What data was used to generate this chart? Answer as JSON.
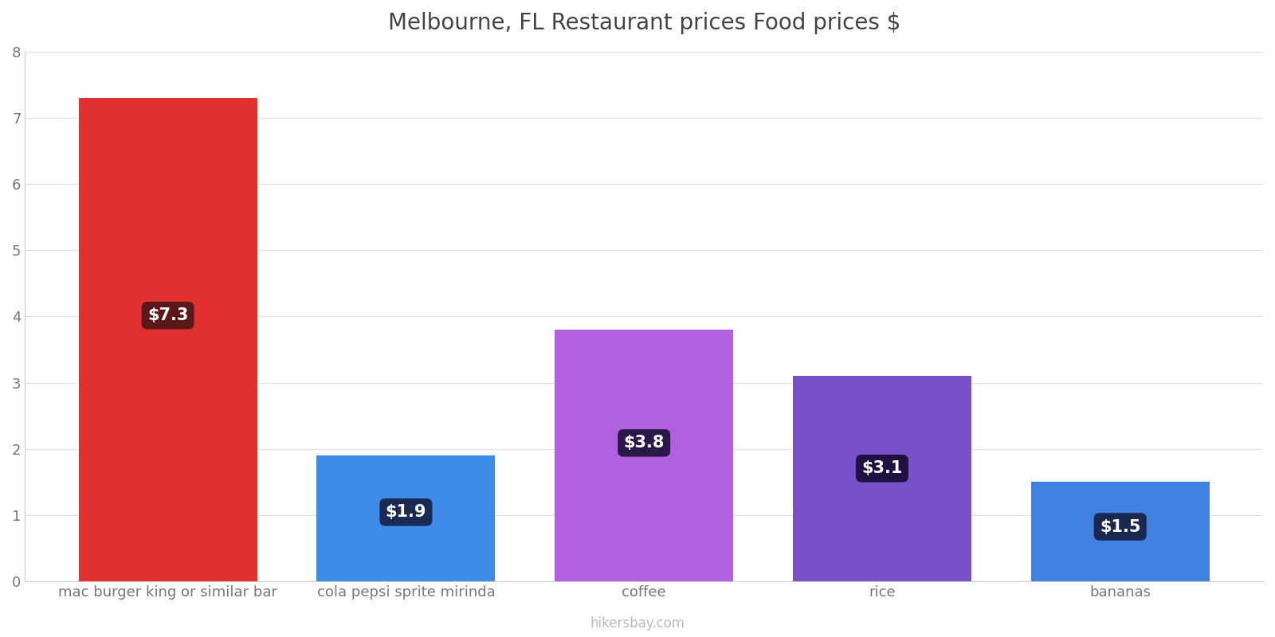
{
  "title": "Melbourne, FL Restaurant prices Food prices $",
  "categories": [
    "mac burger king or similar bar",
    "cola pepsi sprite mirinda",
    "coffee",
    "rice",
    "bananas"
  ],
  "values": [
    7.3,
    1.9,
    3.8,
    3.1,
    1.5
  ],
  "labels": [
    "$7.3",
    "$1.9",
    "$3.8",
    "$3.1",
    "$1.5"
  ],
  "bar_colors": [
    "#e03030",
    "#3d8de8",
    "#b060e0",
    "#7850c8",
    "#4080e0"
  ],
  "label_box_colors": [
    "#5a1818",
    "#1a2a52",
    "#2a1848",
    "#1e1040",
    "#1a2850"
  ],
  "ylim": [
    0,
    8
  ],
  "yticks": [
    0,
    1,
    2,
    3,
    4,
    5,
    6,
    7,
    8
  ],
  "background_color": "#ffffff",
  "title_fontsize": 20,
  "tick_fontsize": 13,
  "label_fontsize": 15,
  "watermark": "hikersbay.com",
  "bar_width": 0.75
}
